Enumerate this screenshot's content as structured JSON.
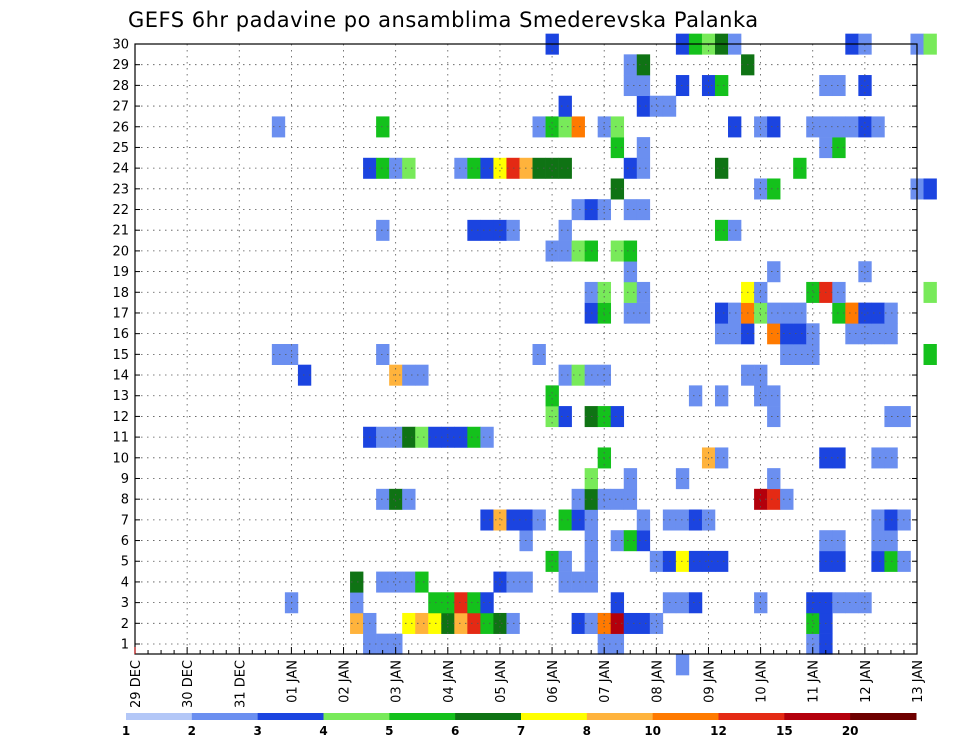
{
  "chart_data": {
    "type": "heatmap",
    "title": "GEFS 6hr padavine po ansamblima Smederevska Palanka",
    "xlabel": "",
    "ylabel": "",
    "x_tick_labels": [
      "29 DEC",
      "30 DEC",
      "31 DEC",
      "01 JAN",
      "02 JAN",
      "03 JAN",
      "04 JAN",
      "05 JAN",
      "06 JAN",
      "07 JAN",
      "08 JAN",
      "09 JAN",
      "10 JAN",
      "11 JAN",
      "12 JAN",
      "13 JAN"
    ],
    "x_range_steps": [
      0,
      60
    ],
    "y_range": [
      0,
      30
    ],
    "y_tick_labels": [
      1,
      2,
      3,
      4,
      5,
      6,
      7,
      8,
      9,
      10,
      11,
      12,
      13,
      14,
      15,
      16,
      17,
      18,
      19,
      20,
      21,
      22,
      23,
      24,
      25,
      26,
      27,
      28,
      29,
      30
    ],
    "grid": "dotted",
    "legend": {
      "position": "bottom",
      "labels": [
        "1",
        "2",
        "3",
        "4",
        "5",
        "6",
        "7",
        "8",
        "10",
        "12",
        "15",
        "20"
      ],
      "colors": [
        "#b3c7f7",
        "#6b8ff0",
        "#1b44e0",
        "#78ea5a",
        "#14c11c",
        "#0f7314",
        "#ffff00",
        "#ffb33c",
        "#ff7a00",
        "#e42a14",
        "#b3000c",
        "#6e0000"
      ]
    },
    "colors": [
      "#b3c7f7",
      "#6b8ff0",
      "#1b44e0",
      "#78ea5a",
      "#14c11c",
      "#0f7314",
      "#ffff00",
      "#ffb33c",
      "#ff7a00",
      "#e42a14",
      "#b3000c",
      "#6e0000"
    ],
    "cells": [
      [
        42,
        0,
        1
      ],
      [
        36,
        1,
        1
      ],
      [
        37,
        1,
        1
      ],
      [
        52,
        1,
        1
      ],
      [
        53,
        1,
        2
      ],
      [
        18,
        1,
        1
      ],
      [
        19,
        1,
        1
      ],
      [
        20,
        1,
        1
      ],
      [
        36,
        2,
        2
      ],
      [
        35,
        2,
        1
      ],
      [
        17,
        2,
        7
      ],
      [
        18,
        2,
        1
      ],
      [
        21,
        2,
        6
      ],
      [
        22,
        2,
        7
      ],
      [
        23,
        2,
        6
      ],
      [
        24,
        2,
        5
      ],
      [
        25,
        2,
        7
      ],
      [
        26,
        2,
        9
      ],
      [
        27,
        2,
        4
      ],
      [
        28,
        2,
        5
      ],
      [
        29,
        2,
        1
      ],
      [
        34,
        2,
        2
      ],
      [
        35,
        2,
        1
      ],
      [
        36,
        2,
        8
      ],
      [
        37,
        2,
        10
      ],
      [
        38,
        2,
        2
      ],
      [
        39,
        2,
        2
      ],
      [
        40,
        2,
        1
      ],
      [
        52,
        2,
        4
      ],
      [
        53,
        2,
        2
      ],
      [
        12,
        3,
        1
      ],
      [
        17,
        3,
        1
      ],
      [
        23,
        3,
        4
      ],
      [
        24,
        3,
        4
      ],
      [
        25,
        3,
        9
      ],
      [
        26,
        3,
        4
      ],
      [
        27,
        3,
        2
      ],
      [
        37,
        3,
        2
      ],
      [
        41,
        3,
        1
      ],
      [
        42,
        3,
        1
      ],
      [
        43,
        3,
        2
      ],
      [
        48,
        3,
        1
      ],
      [
        52,
        3,
        2
      ],
      [
        53,
        3,
        2
      ],
      [
        54,
        3,
        1
      ],
      [
        55,
        3,
        1
      ],
      [
        56,
        3,
        1
      ],
      [
        17,
        4,
        5
      ],
      [
        19,
        4,
        1
      ],
      [
        20,
        4,
        1
      ],
      [
        21,
        4,
        1
      ],
      [
        22,
        4,
        4
      ],
      [
        28,
        4,
        2
      ],
      [
        29,
        4,
        1
      ],
      [
        30,
        4,
        1
      ],
      [
        33,
        4,
        1
      ],
      [
        34,
        4,
        1
      ],
      [
        35,
        4,
        1
      ],
      [
        32,
        5,
        4
      ],
      [
        33,
        5,
        1
      ],
      [
        35,
        5,
        1
      ],
      [
        40,
        5,
        1
      ],
      [
        41,
        5,
        2
      ],
      [
        42,
        5,
        6
      ],
      [
        43,
        5,
        2
      ],
      [
        44,
        5,
        2
      ],
      [
        45,
        5,
        2
      ],
      [
        53,
        5,
        2
      ],
      [
        54,
        5,
        2
      ],
      [
        57,
        5,
        2
      ],
      [
        58,
        5,
        4
      ],
      [
        59,
        5,
        1
      ],
      [
        30,
        6,
        1
      ],
      [
        35,
        6,
        1
      ],
      [
        37,
        6,
        1
      ],
      [
        38,
        6,
        4
      ],
      [
        39,
        6,
        2
      ],
      [
        53,
        6,
        1
      ],
      [
        54,
        6,
        1
      ],
      [
        57,
        6,
        1
      ],
      [
        58,
        6,
        1
      ],
      [
        27,
        7,
        2
      ],
      [
        28,
        7,
        7
      ],
      [
        29,
        7,
        2
      ],
      [
        30,
        7,
        2
      ],
      [
        31,
        7,
        1
      ],
      [
        33,
        7,
        4
      ],
      [
        34,
        7,
        2
      ],
      [
        35,
        7,
        1
      ],
      [
        39,
        7,
        1
      ],
      [
        41,
        7,
        1
      ],
      [
        42,
        7,
        1
      ],
      [
        43,
        7,
        2
      ],
      [
        44,
        7,
        1
      ],
      [
        57,
        7,
        1
      ],
      [
        58,
        7,
        2
      ],
      [
        59,
        7,
        1
      ],
      [
        19,
        8,
        1
      ],
      [
        20,
        8,
        5
      ],
      [
        21,
        8,
        1
      ],
      [
        34,
        8,
        1
      ],
      [
        35,
        8,
        5
      ],
      [
        36,
        8,
        1
      ],
      [
        37,
        8,
        1
      ],
      [
        38,
        8,
        1
      ],
      [
        48,
        8,
        10
      ],
      [
        49,
        8,
        9
      ],
      [
        50,
        8,
        1
      ],
      [
        35,
        9,
        3
      ],
      [
        38,
        9,
        1
      ],
      [
        42,
        9,
        1
      ],
      [
        49,
        9,
        1
      ],
      [
        36,
        10,
        4
      ],
      [
        44,
        10,
        7
      ],
      [
        45,
        10,
        1
      ],
      [
        53,
        10,
        2
      ],
      [
        54,
        10,
        2
      ],
      [
        57,
        10,
        1
      ],
      [
        58,
        10,
        1
      ],
      [
        18,
        11,
        2
      ],
      [
        19,
        11,
        1
      ],
      [
        20,
        11,
        1
      ],
      [
        21,
        11,
        5
      ],
      [
        22,
        11,
        3
      ],
      [
        23,
        11,
        2
      ],
      [
        24,
        11,
        2
      ],
      [
        25,
        11,
        2
      ],
      [
        26,
        11,
        4
      ],
      [
        27,
        11,
        1
      ],
      [
        32,
        12,
        3
      ],
      [
        33,
        12,
        2
      ],
      [
        35,
        12,
        5
      ],
      [
        36,
        12,
        4
      ],
      [
        37,
        12,
        2
      ],
      [
        49,
        12,
        1
      ],
      [
        58,
        12,
        1
      ],
      [
        59,
        12,
        1
      ],
      [
        32,
        13,
        4
      ],
      [
        43,
        13,
        1
      ],
      [
        45,
        13,
        1
      ],
      [
        48,
        13,
        1
      ],
      [
        49,
        13,
        1
      ],
      [
        13,
        14,
        2
      ],
      [
        20,
        14,
        7
      ],
      [
        21,
        14,
        1
      ],
      [
        22,
        14,
        1
      ],
      [
        33,
        14,
        1
      ],
      [
        34,
        14,
        3
      ],
      [
        35,
        14,
        1
      ],
      [
        36,
        14,
        1
      ],
      [
        47,
        14,
        1
      ],
      [
        48,
        14,
        1
      ],
      [
        11,
        15,
        1
      ],
      [
        12,
        15,
        1
      ],
      [
        19,
        15,
        1
      ],
      [
        31,
        15,
        1
      ],
      [
        50,
        15,
        1
      ],
      [
        51,
        15,
        1
      ],
      [
        52,
        15,
        1
      ],
      [
        61,
        15,
        4
      ],
      [
        45,
        16,
        1
      ],
      [
        46,
        16,
        1
      ],
      [
        47,
        16,
        2
      ],
      [
        49,
        16,
        8
      ],
      [
        50,
        16,
        2
      ],
      [
        51,
        16,
        2
      ],
      [
        52,
        16,
        1
      ],
      [
        55,
        16,
        1
      ],
      [
        56,
        16,
        1
      ],
      [
        57,
        16,
        1
      ],
      [
        58,
        16,
        1
      ],
      [
        35,
        17,
        2
      ],
      [
        36,
        17,
        4
      ],
      [
        38,
        17,
        1
      ],
      [
        39,
        17,
        1
      ],
      [
        45,
        17,
        2
      ],
      [
        46,
        17,
        1
      ],
      [
        47,
        17,
        8
      ],
      [
        48,
        17,
        3
      ],
      [
        49,
        17,
        1
      ],
      [
        50,
        17,
        1
      ],
      [
        51,
        17,
        1
      ],
      [
        54,
        17,
        4
      ],
      [
        55,
        17,
        8
      ],
      [
        56,
        17,
        2
      ],
      [
        57,
        17,
        2
      ],
      [
        58,
        17,
        1
      ],
      [
        35,
        18,
        1
      ],
      [
        36,
        18,
        3
      ],
      [
        38,
        18,
        3
      ],
      [
        39,
        18,
        1
      ],
      [
        47,
        18,
        6
      ],
      [
        48,
        18,
        1
      ],
      [
        52,
        18,
        4
      ],
      [
        53,
        18,
        9
      ],
      [
        54,
        18,
        1
      ],
      [
        61,
        18,
        3
      ],
      [
        38,
        19,
        1
      ],
      [
        49,
        19,
        1
      ],
      [
        56,
        19,
        1
      ],
      [
        32,
        20,
        1
      ],
      [
        33,
        20,
        1
      ],
      [
        34,
        20,
        3
      ],
      [
        35,
        20,
        4
      ],
      [
        37,
        20,
        3
      ],
      [
        38,
        20,
        4
      ],
      [
        19,
        21,
        1
      ],
      [
        26,
        21,
        2
      ],
      [
        27,
        21,
        2
      ],
      [
        28,
        21,
        2
      ],
      [
        29,
        21,
        1
      ],
      [
        33,
        21,
        1
      ],
      [
        45,
        21,
        4
      ],
      [
        46,
        21,
        1
      ],
      [
        34,
        22,
        1
      ],
      [
        35,
        22,
        2
      ],
      [
        36,
        22,
        1
      ],
      [
        38,
        22,
        1
      ],
      [
        39,
        22,
        1
      ],
      [
        37,
        23,
        5
      ],
      [
        48,
        23,
        1
      ],
      [
        49,
        23,
        4
      ],
      [
        60,
        23,
        1
      ],
      [
        61,
        23,
        2
      ],
      [
        18,
        24,
        2
      ],
      [
        19,
        24,
        4
      ],
      [
        20,
        24,
        1
      ],
      [
        21,
        24,
        3
      ],
      [
        25,
        24,
        1
      ],
      [
        26,
        24,
        4
      ],
      [
        27,
        24,
        2
      ],
      [
        28,
        24,
        6
      ],
      [
        29,
        24,
        9
      ],
      [
        30,
        24,
        7
      ],
      [
        31,
        24,
        5
      ],
      [
        32,
        24,
        5
      ],
      [
        33,
        24,
        5
      ],
      [
        38,
        24,
        2
      ],
      [
        39,
        24,
        1
      ],
      [
        45,
        24,
        5
      ],
      [
        51,
        24,
        4
      ],
      [
        37,
        25,
        4
      ],
      [
        39,
        25,
        1
      ],
      [
        53,
        25,
        1
      ],
      [
        54,
        25,
        4
      ],
      [
        11,
        26,
        1
      ],
      [
        19,
        26,
        4
      ],
      [
        31,
        26,
        1
      ],
      [
        32,
        26,
        4
      ],
      [
        33,
        26,
        3
      ],
      [
        34,
        26,
        8
      ],
      [
        36,
        26,
        1
      ],
      [
        37,
        26,
        3
      ],
      [
        46,
        26,
        2
      ],
      [
        48,
        26,
        1
      ],
      [
        49,
        26,
        2
      ],
      [
        52,
        26,
        1
      ],
      [
        53,
        26,
        1
      ],
      [
        54,
        26,
        1
      ],
      [
        55,
        26,
        1
      ],
      [
        56,
        26,
        2
      ],
      [
        57,
        26,
        1
      ],
      [
        33,
        27,
        2
      ],
      [
        39,
        27,
        2
      ],
      [
        40,
        27,
        1
      ],
      [
        41,
        27,
        1
      ],
      [
        38,
        28,
        1
      ],
      [
        39,
        28,
        1
      ],
      [
        42,
        28,
        2
      ],
      [
        44,
        28,
        2
      ],
      [
        45,
        28,
        4
      ],
      [
        53,
        28,
        1
      ],
      [
        54,
        28,
        1
      ],
      [
        56,
        28,
        2
      ],
      [
        38,
        29,
        1
      ],
      [
        39,
        29,
        5
      ],
      [
        47,
        29,
        5
      ],
      [
        32,
        30,
        2
      ],
      [
        42,
        30,
        2
      ],
      [
        43,
        30,
        4
      ],
      [
        44,
        30,
        3
      ],
      [
        45,
        30,
        5
      ],
      [
        46,
        30,
        1
      ],
      [
        55,
        30,
        2
      ],
      [
        56,
        30,
        1
      ],
      [
        60,
        30,
        1
      ],
      [
        61,
        30,
        3
      ]
    ]
  }
}
